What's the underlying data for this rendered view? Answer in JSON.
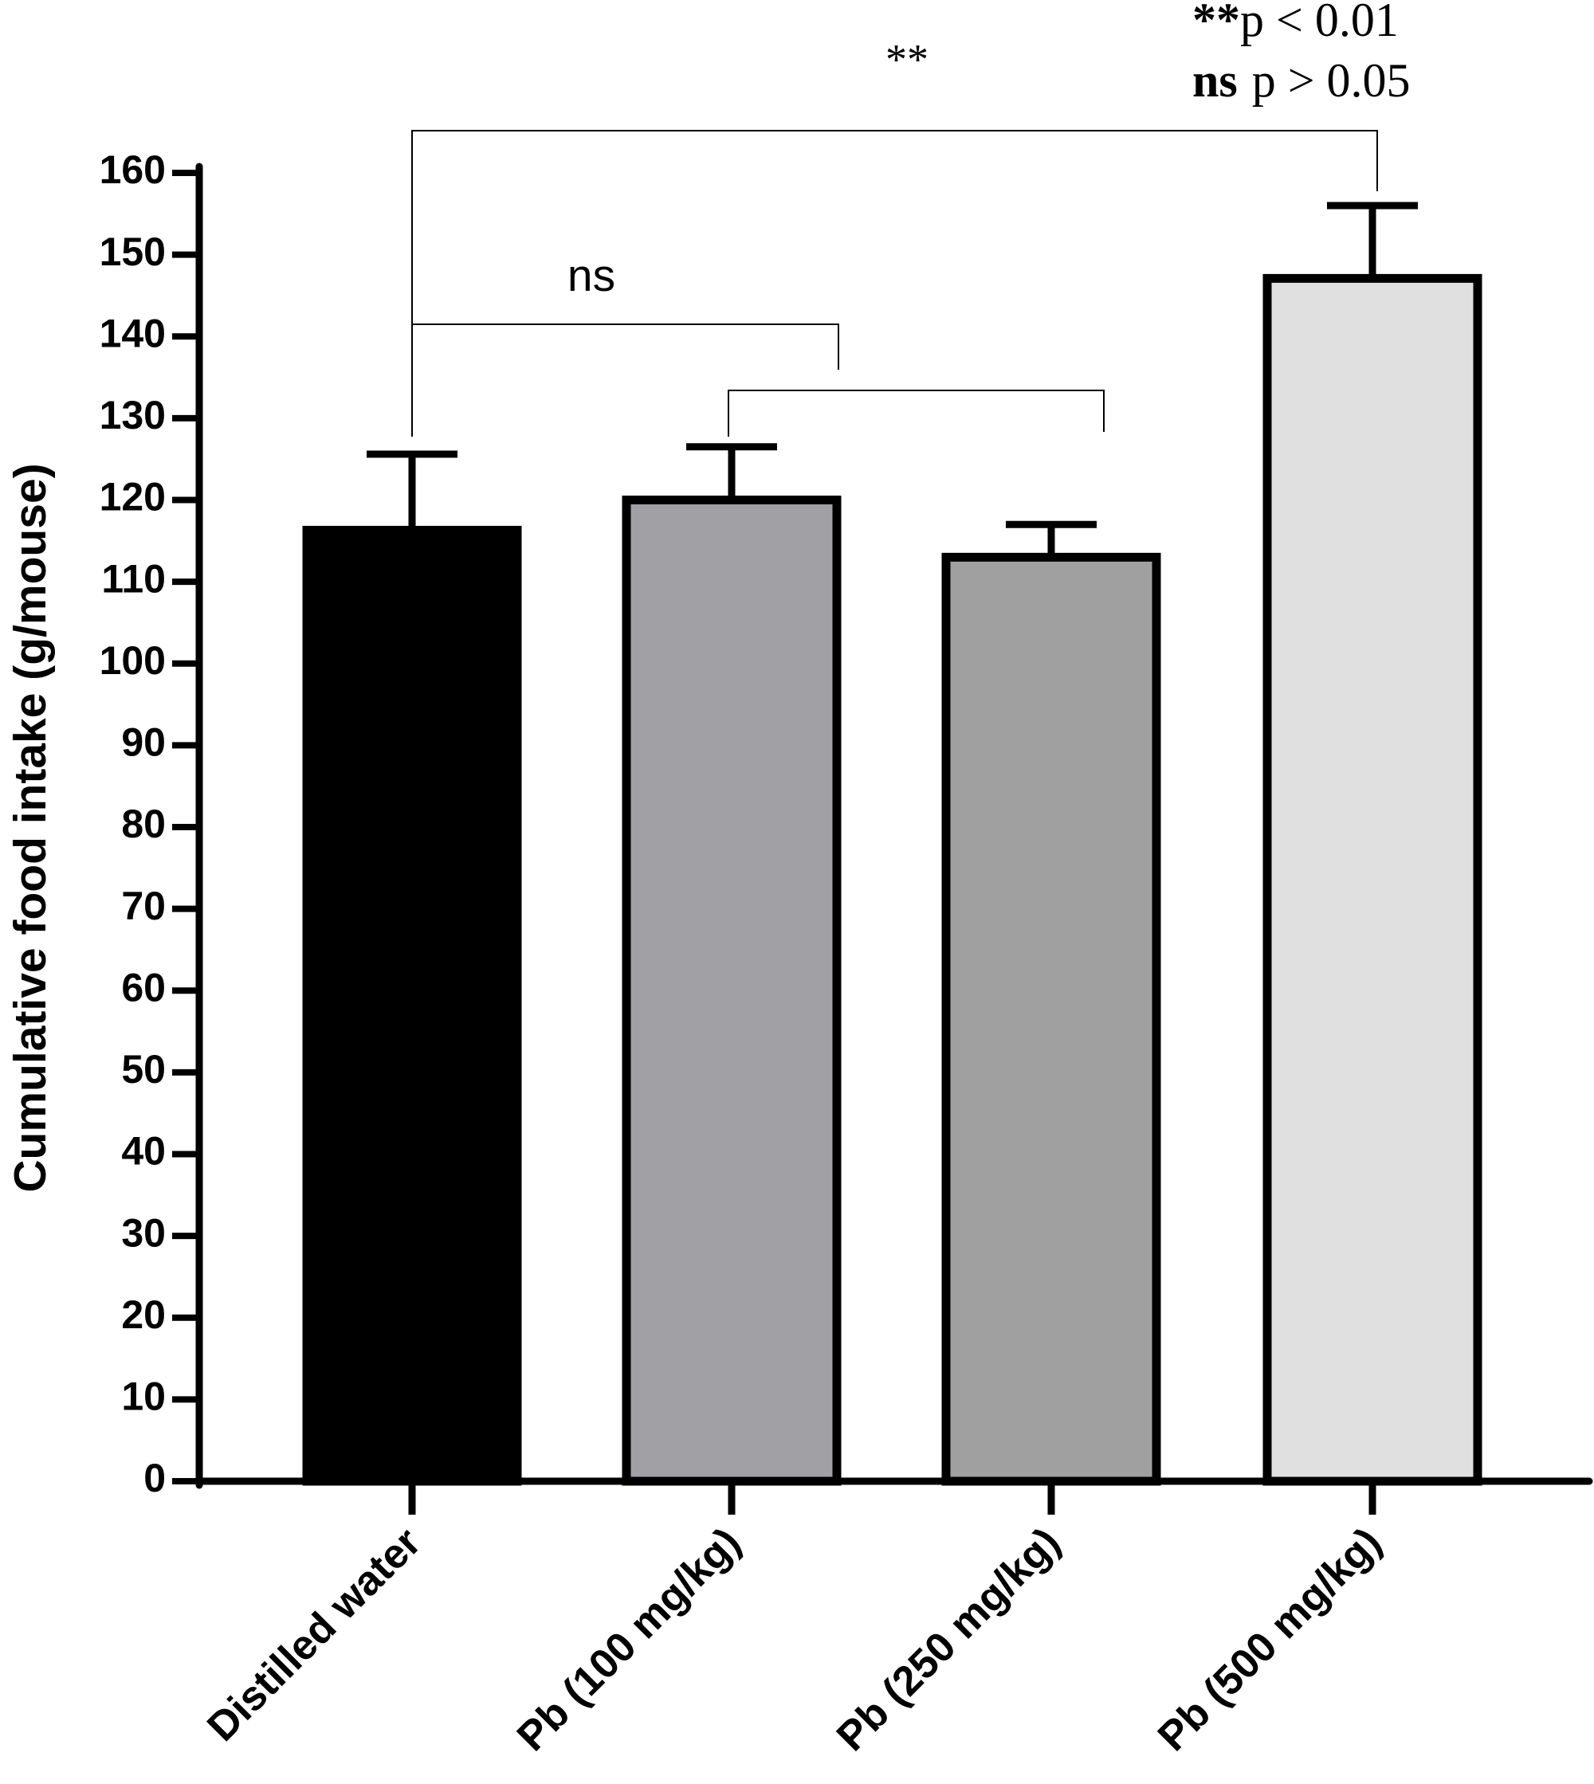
{
  "chart_data": {
    "type": "bar",
    "y_label": "Cumulative food intake (g/mouse)",
    "categories": [
      "Distilled water",
      "Pb (100 mg/kg)",
      "Pb (250 mg/kg)",
      "Pb (500 mg/kg)"
    ],
    "values": [
      116.3,
      120,
      113,
      147.1
    ],
    "errors": [
      9.3,
      6.5,
      4,
      8.9
    ],
    "colors": [
      "#000000",
      "#a1a1a5",
      "#a0a0a0",
      "#e0e0e0"
    ],
    "ylim": [
      0,
      160
    ],
    "yticks": [
      0,
      10,
      20,
      30,
      40,
      50,
      60,
      70,
      80,
      90,
      100,
      110,
      120,
      130,
      140,
      150,
      160
    ],
    "comparison_labels": [
      "**",
      "ns"
    ],
    "notes": [
      {
        "mark": "**",
        "text": "p < 0.01"
      },
      {
        "mark": "ns",
        "text": "p > 0.05"
      }
    ]
  }
}
